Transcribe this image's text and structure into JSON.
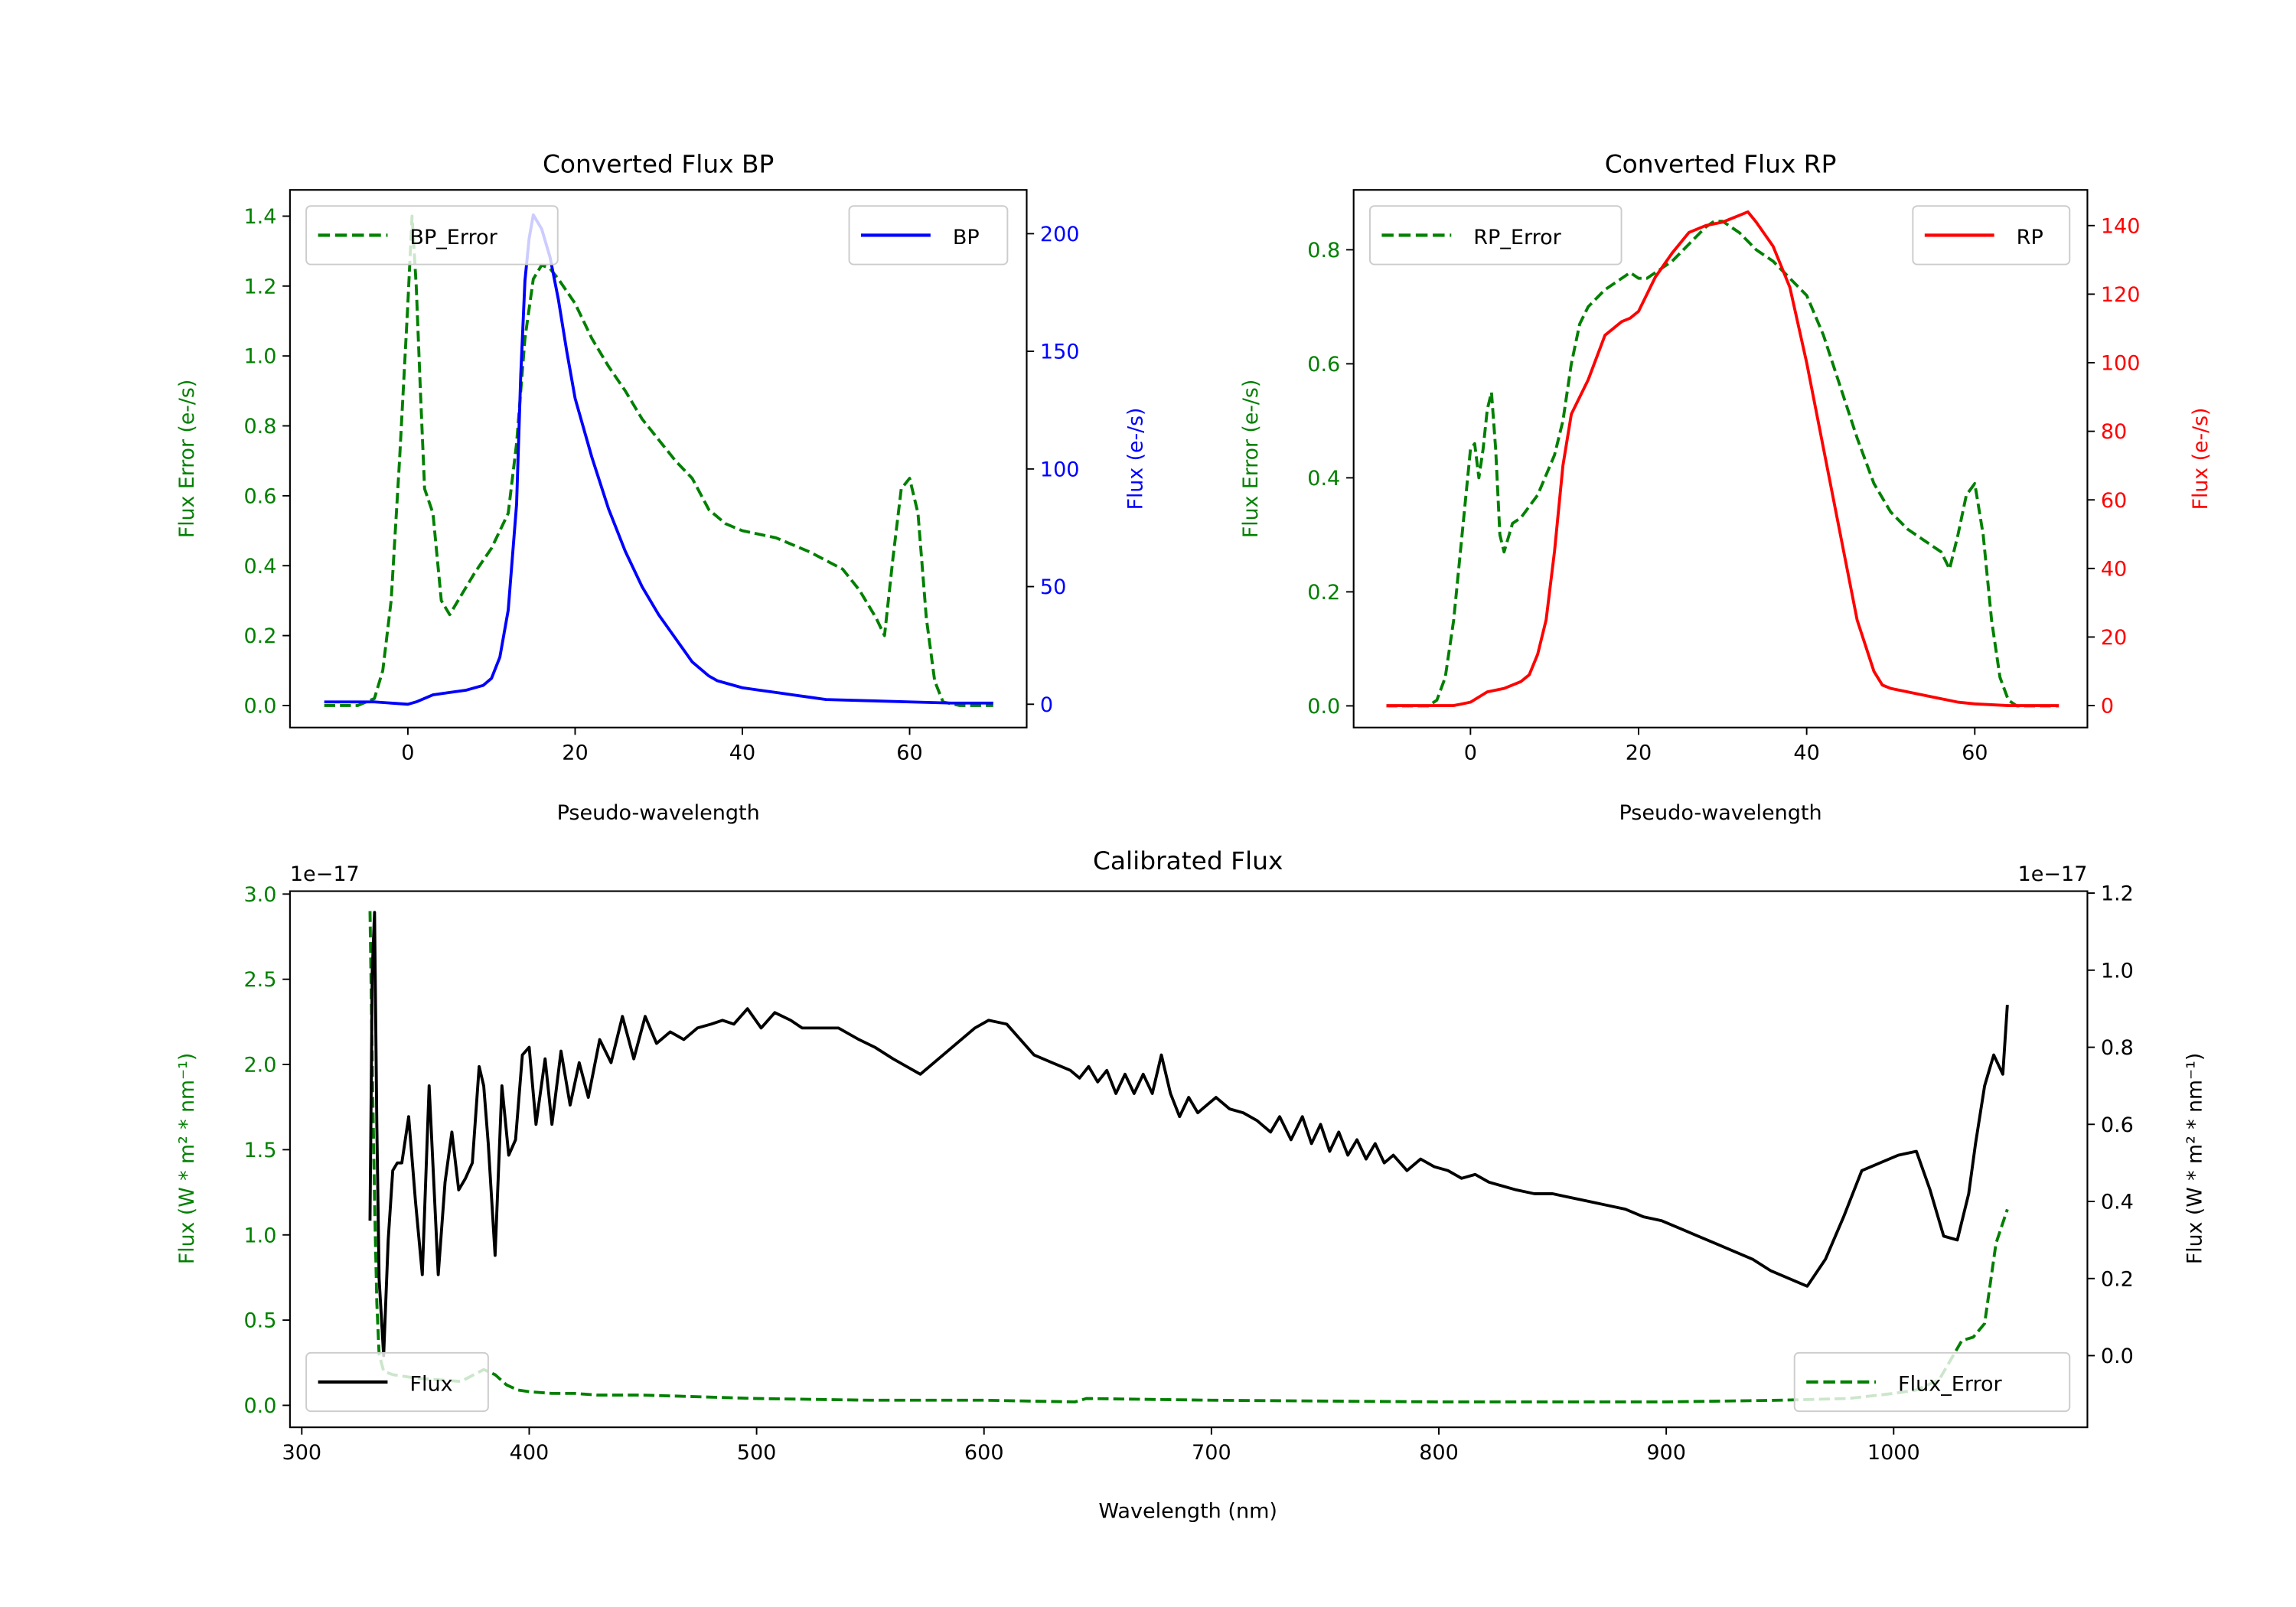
{
  "figure": {
    "background": "#ffffff"
  },
  "chart_data": [
    {
      "id": "bp",
      "type": "line",
      "title": "Converted Flux BP",
      "xlabel": "Pseudo-wavelength",
      "ylabel_left": "Flux Error (e-/s)",
      "ylabel_right": "Flux (e-/s)",
      "xlim": [
        -14.1,
        74.0
      ],
      "ylim_left": [
        -0.063,
        1.475
      ],
      "ylim_right": [
        -9.9,
        218.6
      ],
      "xticks": [
        0,
        20,
        40,
        60
      ],
      "yticks_left": [
        0.0,
        0.2,
        0.4,
        0.6,
        0.8,
        1.0,
        1.2,
        1.4
      ],
      "yticks_left_labels": [
        "0.0",
        "0.2",
        "0.4",
        "0.6",
        "0.8",
        "1.0",
        "1.2",
        "1.4"
      ],
      "yticks_right": [
        0,
        50,
        100,
        150,
        200
      ],
      "left_color": "#008000",
      "right_color": "#0000ff",
      "grid": false,
      "legend_left": {
        "label": "BP_Error",
        "placement": "upper-left"
      },
      "legend_right": {
        "label": "BP",
        "placement": "upper-right"
      },
      "series": [
        {
          "name": "BP_Error",
          "axis": "left",
          "color": "#008000",
          "style": "dashed",
          "x": [
            -10,
            -6,
            -4,
            -3,
            -2,
            -1,
            0,
            0.5,
            1,
            1.5,
            2,
            3,
            4,
            5,
            6,
            8,
            10,
            12,
            13,
            14,
            15,
            16,
            17,
            18,
            20,
            22,
            24,
            26,
            28,
            30,
            32,
            34,
            36,
            38,
            40,
            44,
            48,
            52,
            54,
            56,
            57,
            58,
            59,
            60,
            61,
            62,
            63,
            64,
            66,
            70
          ],
          "y": [
            0,
            0,
            0.02,
            0.1,
            0.3,
            0.7,
            1.15,
            1.4,
            1.2,
            0.9,
            0.62,
            0.55,
            0.3,
            0.26,
            0.3,
            0.38,
            0.45,
            0.55,
            0.75,
            1.05,
            1.22,
            1.26,
            1.25,
            1.22,
            1.15,
            1.05,
            0.97,
            0.9,
            0.82,
            0.76,
            0.7,
            0.65,
            0.56,
            0.52,
            0.5,
            0.48,
            0.44,
            0.39,
            0.33,
            0.25,
            0.2,
            0.42,
            0.62,
            0.65,
            0.55,
            0.25,
            0.07,
            0.01,
            0,
            0
          ]
        },
        {
          "name": "BP",
          "axis": "right",
          "color": "#0000ff",
          "style": "solid",
          "x": [
            -10,
            -4,
            0,
            1,
            3,
            5,
            7,
            9,
            10,
            11,
            12,
            13,
            13.5,
            14,
            14.5,
            15,
            15.5,
            16,
            17,
            18,
            19,
            20,
            22,
            24,
            26,
            28,
            30,
            32,
            34,
            36,
            37,
            38,
            40,
            42,
            44,
            46,
            48,
            50,
            55,
            60,
            65,
            70
          ],
          "y": [
            1,
            1,
            0,
            1,
            4,
            5,
            6,
            8,
            11,
            20,
            40,
            85,
            140,
            180,
            198,
            208,
            205,
            202,
            190,
            172,
            150,
            130,
            105,
            83,
            65,
            50,
            38,
            28,
            18,
            12,
            10,
            9,
            7,
            6,
            5,
            4,
            3,
            2,
            1.5,
            1,
            0.5,
            0.5
          ]
        }
      ]
    },
    {
      "id": "rp",
      "type": "line",
      "title": "Converted Flux RP",
      "xlabel": "Pseudo-wavelength",
      "ylabel_left": "Flux Error (e-/s)",
      "ylabel_right": "Flux (e-/s)",
      "xlim": [
        -13.9,
        73.4
      ],
      "ylim_left": [
        -0.038,
        0.905
      ],
      "ylim_right": [
        -6.4,
        150.4
      ],
      "xticks": [
        0,
        20,
        40,
        60
      ],
      "yticks_left": [
        0.0,
        0.2,
        0.4,
        0.6,
        0.8
      ],
      "yticks_left_labels": [
        "0.0",
        "0.2",
        "0.4",
        "0.6",
        "0.8"
      ],
      "yticks_right": [
        0,
        20,
        40,
        60,
        80,
        100,
        120,
        140
      ],
      "left_color": "#008000",
      "right_color": "#ff0000",
      "grid": false,
      "legend_left": {
        "label": "RP_Error",
        "placement": "upper-left"
      },
      "legend_right": {
        "label": "RP",
        "placement": "upper-right"
      },
      "series": [
        {
          "name": "RP_Error",
          "axis": "left",
          "color": "#008000",
          "style": "dashed",
          "x": [
            -10,
            -5,
            -4,
            -3,
            -2,
            -1,
            0,
            0.5,
            1,
            1.5,
            2,
            2.5,
            3,
            3.5,
            4,
            5,
            6,
            8,
            10,
            11,
            12,
            13,
            14,
            16,
            18,
            19,
            20,
            21,
            22,
            24,
            26,
            28,
            29,
            30,
            31,
            32,
            34,
            36,
            38,
            40,
            42,
            44,
            46,
            48,
            50,
            52,
            54,
            55,
            56,
            57,
            58,
            59,
            60,
            61,
            62,
            63,
            64,
            65,
            70
          ],
          "y": [
            0,
            0,
            0.01,
            0.05,
            0.15,
            0.3,
            0.45,
            0.46,
            0.4,
            0.45,
            0.52,
            0.55,
            0.45,
            0.3,
            0.27,
            0.32,
            0.33,
            0.37,
            0.44,
            0.5,
            0.6,
            0.67,
            0.7,
            0.73,
            0.75,
            0.76,
            0.75,
            0.75,
            0.76,
            0.78,
            0.81,
            0.84,
            0.85,
            0.85,
            0.84,
            0.83,
            0.8,
            0.78,
            0.75,
            0.72,
            0.65,
            0.56,
            0.47,
            0.39,
            0.34,
            0.31,
            0.29,
            0.28,
            0.27,
            0.24,
            0.3,
            0.37,
            0.39,
            0.3,
            0.15,
            0.05,
            0.01,
            0,
            0
          ]
        },
        {
          "name": "RP",
          "axis": "right",
          "color": "#ff0000",
          "style": "solid",
          "x": [
            -10,
            -2,
            0,
            2,
            4,
            6,
            7,
            8,
            9,
            10,
            11,
            12,
            13,
            14,
            16,
            18,
            19,
            20,
            22,
            24,
            26,
            28,
            30,
            31,
            32,
            33,
            34,
            36,
            38,
            40,
            42,
            44,
            46,
            48,
            49,
            50,
            52,
            54,
            56,
            58,
            60,
            64,
            70
          ],
          "y": [
            0,
            0,
            1,
            4,
            5,
            7,
            9,
            15,
            25,
            45,
            70,
            85,
            90,
            95,
            108,
            112,
            113,
            115,
            125,
            132,
            138,
            140,
            141,
            142,
            143,
            144,
            141,
            134,
            122,
            100,
            75,
            50,
            25,
            10,
            6,
            5,
            4,
            3,
            2,
            1,
            0.5,
            0,
            0
          ]
        }
      ]
    },
    {
      "id": "calibrated",
      "type": "line",
      "title": "Calibrated Flux",
      "xlabel": "Wavelength (nm)",
      "ylabel_left": "Flux (W * m² * nm⁻¹)",
      "ylabel_right": "Flux (W * m² * nm⁻¹)",
      "offset_left": "1e−17",
      "offset_right": "1e−17",
      "xlim": [
        294.8,
        1085.2
      ],
      "ylim_left": [
        -0.129,
        3.017
      ],
      "ylim_right": [
        -0.186,
        1.205
      ],
      "xticks": [
        300,
        400,
        500,
        600,
        700,
        800,
        900,
        1000
      ],
      "yticks_left": [
        0.0,
        0.5,
        1.0,
        1.5,
        2.0,
        2.5,
        3.0
      ],
      "yticks_left_labels": [
        "0.0",
        "0.5",
        "1.0",
        "1.5",
        "2.0",
        "2.5",
        "3.0"
      ],
      "yticks_right": [
        0.0,
        0.2,
        0.4,
        0.6,
        0.8,
        1.0,
        1.2
      ],
      "yticks_right_labels": [
        "0.0",
        "0.2",
        "0.4",
        "0.6",
        "0.8",
        "1.0",
        "1.2"
      ],
      "left_color": "#008000",
      "right_color": "#000000",
      "grid": false,
      "legend_left": {
        "label": "Flux",
        "placement": "lower-left"
      },
      "legend_right": {
        "label": "Flux_Error",
        "placement": "lower-right"
      },
      "series": [
        {
          "name": "Flux",
          "axis": "right",
          "color": "#000000",
          "style": "solid",
          "x": [
            330,
            331,
            332,
            333,
            334,
            336,
            338,
            340,
            342,
            344,
            347,
            350,
            353,
            356,
            360,
            363,
            366,
            369,
            372,
            375,
            378,
            380,
            382,
            385,
            388,
            391,
            394,
            397,
            400,
            403,
            407,
            410,
            414,
            418,
            422,
            426,
            431,
            436,
            441,
            446,
            451,
            456,
            462,
            468,
            474,
            480,
            485,
            490,
            496,
            502,
            508,
            515,
            520,
            528,
            536,
            545,
            552,
            560,
            566,
            572,
            578,
            584,
            590,
            596,
            602,
            610,
            616,
            622,
            630,
            638,
            642,
            646,
            650,
            654,
            658,
            662,
            666,
            670,
            674,
            678,
            682,
            686,
            690,
            694,
            698,
            702,
            708,
            714,
            720,
            726,
            730,
            735,
            740,
            744,
            748,
            752,
            756,
            760,
            764,
            768,
            772,
            776,
            780,
            786,
            792,
            798,
            804,
            810,
            816,
            822,
            828,
            834,
            842,
            850,
            858,
            866,
            874,
            882,
            890,
            898,
            906,
            914,
            922,
            930,
            938,
            946,
            954,
            962,
            970,
            978,
            986,
            994,
            1002,
            1010,
            1016,
            1022,
            1028,
            1033,
            1036,
            1040,
            1044,
            1048,
            1050
          ],
          "y": [
            0.35,
            1.0,
            1.15,
            0.6,
            0.2,
            0.0,
            0.3,
            0.48,
            0.5,
            0.5,
            0.62,
            0.4,
            0.21,
            0.7,
            0.21,
            0.45,
            0.58,
            0.43,
            0.46,
            0.5,
            0.75,
            0.7,
            0.55,
            0.26,
            0.7,
            0.52,
            0.56,
            0.78,
            0.8,
            0.6,
            0.77,
            0.6,
            0.79,
            0.65,
            0.76,
            0.67,
            0.82,
            0.76,
            0.88,
            0.77,
            0.88,
            0.81,
            0.84,
            0.82,
            0.85,
            0.86,
            0.87,
            0.86,
            0.9,
            0.85,
            0.89,
            0.87,
            0.85,
            0.85,
            0.85,
            0.82,
            0.8,
            0.77,
            0.75,
            0.73,
            0.76,
            0.79,
            0.82,
            0.85,
            0.87,
            0.86,
            0.82,
            0.78,
            0.76,
            0.74,
            0.72,
            0.75,
            0.71,
            0.74,
            0.68,
            0.73,
            0.68,
            0.73,
            0.68,
            0.78,
            0.68,
            0.62,
            0.67,
            0.63,
            0.65,
            0.67,
            0.64,
            0.63,
            0.61,
            0.58,
            0.62,
            0.56,
            0.62,
            0.55,
            0.6,
            0.53,
            0.58,
            0.52,
            0.56,
            0.51,
            0.55,
            0.5,
            0.52,
            0.48,
            0.51,
            0.49,
            0.48,
            0.46,
            0.47,
            0.45,
            0.44,
            0.43,
            0.42,
            0.42,
            0.41,
            0.4,
            0.39,
            0.38,
            0.36,
            0.35,
            0.33,
            0.31,
            0.29,
            0.27,
            0.25,
            0.22,
            0.2,
            0.18,
            0.25,
            0.36,
            0.48,
            0.5,
            0.52,
            0.53,
            0.43,
            0.31,
            0.3,
            0.42,
            0.55,
            0.7,
            0.78,
            0.73,
            0.91
          ],
          "y_override_note": ""
        },
        {
          "name": "Flux_Error",
          "axis": "left",
          "color": "#008000",
          "style": "dashed",
          "x": [
            330,
            331,
            332,
            333,
            334,
            336,
            340,
            350,
            360,
            370,
            380,
            385,
            390,
            395,
            400,
            410,
            420,
            430,
            450,
            500,
            550,
            600,
            640,
            645,
            700,
            800,
            900,
            950,
            980,
            1000,
            1010,
            1020,
            1030,
            1035,
            1040,
            1045,
            1050
          ],
          "y": [
            2.9,
            2.0,
            1.2,
            0.6,
            0.3,
            0.2,
            0.18,
            0.16,
            0.15,
            0.14,
            0.21,
            0.18,
            0.12,
            0.09,
            0.08,
            0.07,
            0.07,
            0.06,
            0.06,
            0.04,
            0.03,
            0.03,
            0.02,
            0.04,
            0.03,
            0.02,
            0.02,
            0.03,
            0.04,
            0.07,
            0.09,
            0.15,
            0.38,
            0.4,
            0.48,
            0.95,
            1.15
          ]
        }
      ]
    }
  ]
}
